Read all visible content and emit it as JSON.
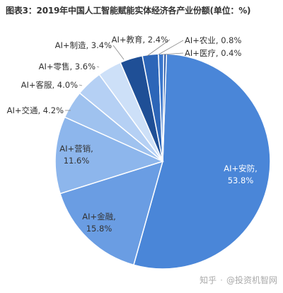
{
  "title": "图表3：2019年中国人工智能赋能实体经济各产业份额(单位：%)",
  "watermark": {
    "site": "知乎",
    "handle": "@投资机智网"
  },
  "chart_data": {
    "type": "pie",
    "title": "图表3：2019年中国人工智能赋能实体经济各产业份额(单位：%)",
    "unit": "%",
    "slices": [
      {
        "label": "AI+安防",
        "value": 53.8,
        "color": "#4a86d8",
        "text": "AI+安防,\n53.8%",
        "text_color": "#ffffff"
      },
      {
        "label": "AI+金融",
        "value": 15.8,
        "color": "#6a9de3",
        "text": "AI+金融,\n15.8%",
        "text_color": "#333333"
      },
      {
        "label": "AI+营销",
        "value": 11.6,
        "color": "#8db6ec",
        "text": "AI+营销,\n11.6%",
        "text_color": "#333333"
      },
      {
        "label": "AI+交通",
        "value": 4.2,
        "color": "#9fc2ef",
        "text": "AI+交通, 4.2%",
        "text_color": "#333333"
      },
      {
        "label": "AI+客服",
        "value": 4.0,
        "color": "#b5d0f4",
        "text": "AI+客服, 4.0%",
        "text_color": "#333333"
      },
      {
        "label": "AI+零售",
        "value": 3.6,
        "color": "#cde0f8",
        "text": "AI+零售, 3.6%",
        "text_color": "#333333"
      },
      {
        "label": "AI+制造",
        "value": 3.4,
        "color": "#1f4f96",
        "text": "AI+制造, 3.4%",
        "text_color": "#333333"
      },
      {
        "label": "AI+教育",
        "value": 2.4,
        "color": "#2d66b8",
        "text": "AI+教育, 2.4%",
        "text_color": "#333333"
      },
      {
        "label": "AI+农业",
        "value": 0.8,
        "color": "#3b77cc",
        "text": "AI+农业, 0.8%",
        "text_color": "#333333"
      },
      {
        "label": "AI+医疗",
        "value": 0.4,
        "color": "#2557a8",
        "text": "AI+医疗, 0.4%",
        "text_color": "#333333"
      }
    ]
  }
}
